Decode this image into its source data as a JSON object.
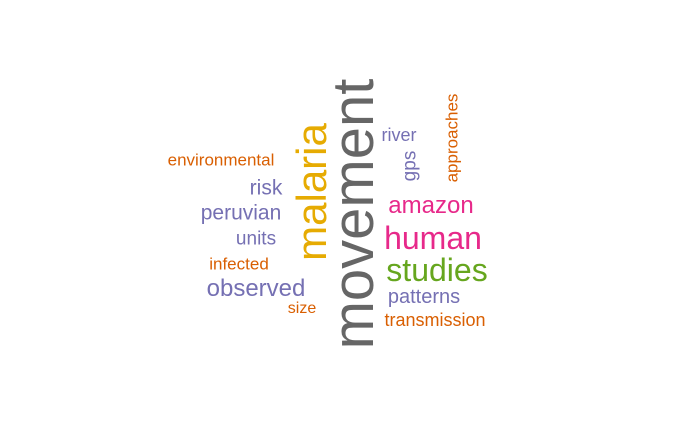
{
  "colors": {
    "gray": "#666666",
    "gold": "#E6AB02",
    "purple": "#7570B3",
    "orange": "#D95F02",
    "magenta": "#E7298A",
    "green": "#66A61E"
  },
  "words": [
    {
      "text": "movement",
      "color": "gray",
      "orientation": "vertical"
    },
    {
      "text": "malaria",
      "color": "gold",
      "orientation": "vertical"
    },
    {
      "text": "environmental",
      "color": "orange",
      "orientation": "horizontal"
    },
    {
      "text": "risk",
      "color": "purple",
      "orientation": "horizontal"
    },
    {
      "text": "peruvian",
      "color": "purple",
      "orientation": "horizontal"
    },
    {
      "text": "units",
      "color": "purple",
      "orientation": "horizontal"
    },
    {
      "text": "infected",
      "color": "orange",
      "orientation": "horizontal"
    },
    {
      "text": "observed",
      "color": "purple",
      "orientation": "horizontal"
    },
    {
      "text": "size",
      "color": "orange",
      "orientation": "horizontal"
    },
    {
      "text": "river",
      "color": "purple",
      "orientation": "horizontal"
    },
    {
      "text": "gps",
      "color": "purple",
      "orientation": "vertical"
    },
    {
      "text": "approaches",
      "color": "orange",
      "orientation": "vertical"
    },
    {
      "text": "amazon",
      "color": "magenta",
      "orientation": "horizontal"
    },
    {
      "text": "human",
      "color": "magenta",
      "orientation": "horizontal"
    },
    {
      "text": "studies",
      "color": "green",
      "orientation": "horizontal"
    },
    {
      "text": "patterns",
      "color": "purple",
      "orientation": "horizontal"
    },
    {
      "text": "transmission",
      "color": "orange",
      "orientation": "horizontal"
    }
  ]
}
